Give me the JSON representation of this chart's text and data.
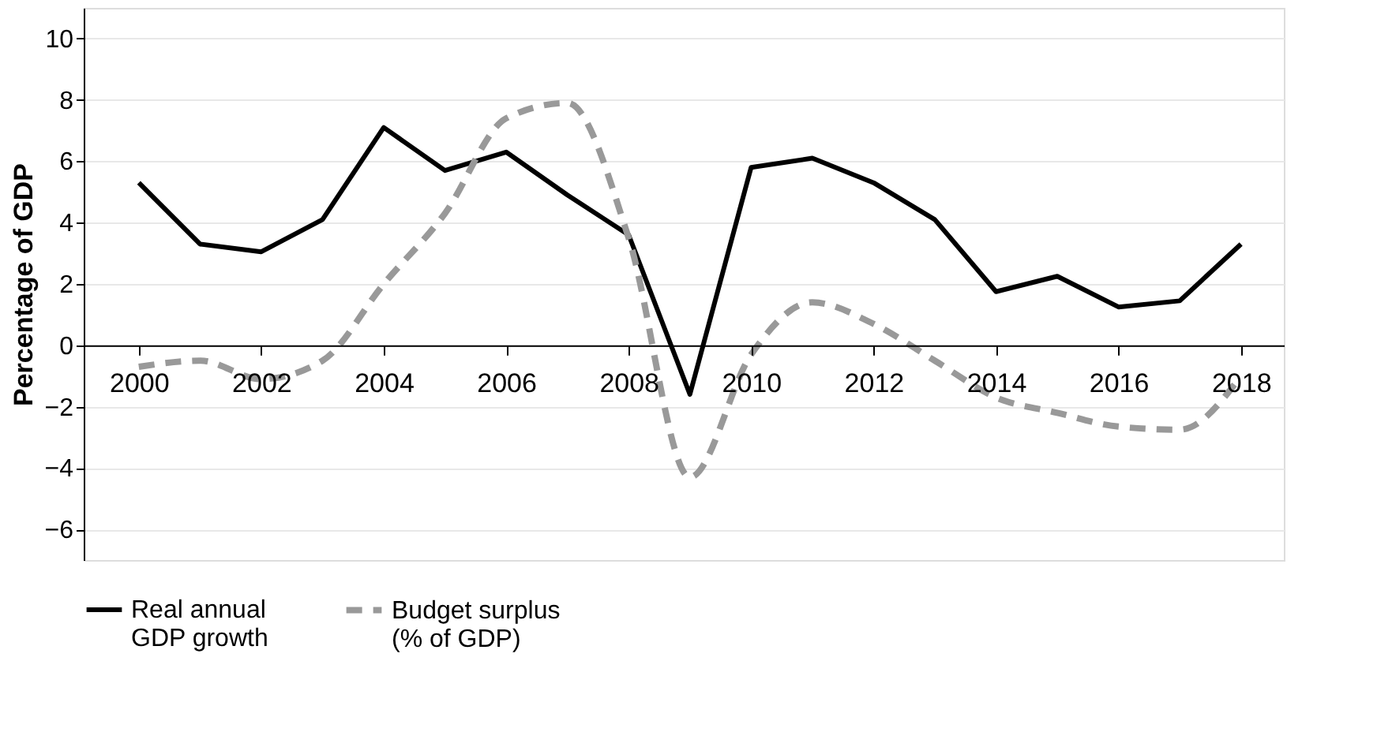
{
  "chart_data": {
    "type": "line",
    "ylabel": "Percentage of GDP",
    "x": [
      2000,
      2001,
      2002,
      2003,
      2004,
      2005,
      2006,
      2007,
      2008,
      2009,
      2010,
      2011,
      2012,
      2013,
      2014,
      2015,
      2016,
      2017,
      2018
    ],
    "series": [
      {
        "name": "Real annual GDP growth",
        "color": "#000000",
        "line_style": "solid",
        "values": [
          5.3,
          3.3,
          3.05,
          4.1,
          7.1,
          5.7,
          6.3,
          4.9,
          3.6,
          -1.6,
          5.8,
          6.1,
          5.3,
          4.1,
          1.75,
          2.25,
          1.25,
          1.45,
          3.3
        ]
      },
      {
        "name": "Budget surplus (% of GDP)",
        "color": "#999999",
        "line_style": "dashed",
        "values": [
          -0.7,
          -0.5,
          -1.1,
          -0.5,
          2.0,
          4.3,
          7.4,
          7.9,
          3.5,
          -4.3,
          -0.3,
          1.4,
          0.7,
          -0.5,
          -1.7,
          -2.2,
          -2.65,
          -2.75,
          -1.0
        ]
      }
    ],
    "xlim": [
      1999.1,
      2018.7
    ],
    "xticks": [
      2000,
      2002,
      2004,
      2006,
      2008,
      2010,
      2012,
      2014,
      2016,
      2018
    ],
    "ylim": [
      -7,
      11
    ],
    "yticks": [
      -6,
      -4,
      -2,
      0,
      2,
      4,
      6,
      8,
      10
    ],
    "grid": "y",
    "legend": "bottom"
  }
}
